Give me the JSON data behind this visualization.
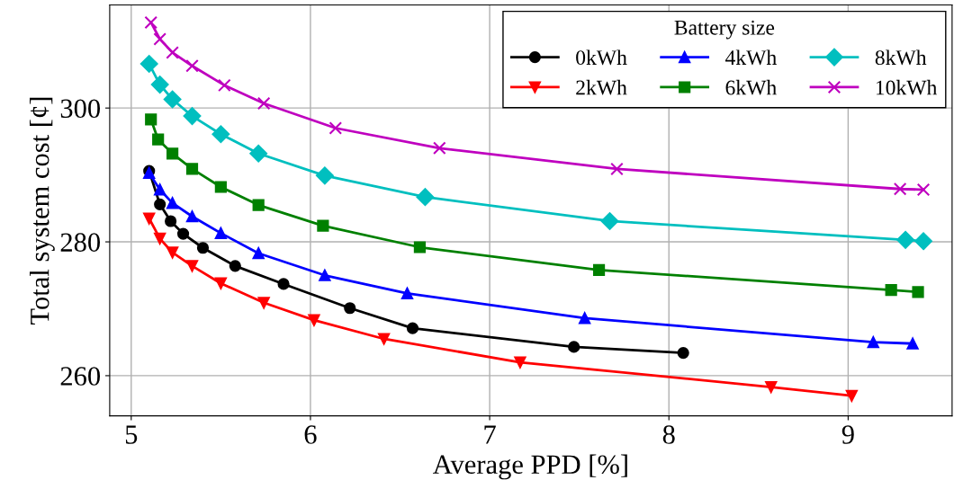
{
  "chart_data": {
    "type": "line",
    "xlabel": "Average PPD [%]",
    "ylabel": "Total system cost [¢]",
    "legend_title": "Battery size",
    "legend": "top right",
    "grid": true,
    "line_style": "solid",
    "xlim": [
      4.88,
      9.58
    ],
    "xticks": [
      5,
      6,
      7,
      8,
      9
    ],
    "ylim": [
      254,
      315.4
    ],
    "yticks": [
      260,
      280,
      300
    ],
    "series": [
      {
        "name": "0kWh",
        "color": "#000000",
        "marker": "circle",
        "x": [
          5.1,
          5.16,
          5.22,
          5.29,
          5.4,
          5.58,
          5.85,
          6.22,
          6.57,
          7.47,
          8.08
        ],
        "values": [
          290.6,
          285.6,
          283.1,
          281.2,
          279.1,
          276.4,
          273.7,
          270.1,
          267.1,
          264.3,
          263.4
        ]
      },
      {
        "name": "2kWh",
        "color": "#ff0000",
        "marker": "triangle_down",
        "x": [
          5.1,
          5.16,
          5.23,
          5.34,
          5.5,
          5.74,
          6.02,
          6.41,
          7.17,
          8.57,
          9.02
        ],
        "values": [
          283.5,
          280.5,
          278.4,
          276.4,
          273.8,
          270.9,
          268.3,
          265.5,
          262.0,
          258.3,
          257.0
        ]
      },
      {
        "name": "4kWh",
        "color": "#0000ff",
        "marker": "triangle",
        "x": [
          5.1,
          5.16,
          5.23,
          5.34,
          5.5,
          5.71,
          6.08,
          6.54,
          7.53,
          9.14,
          9.36
        ],
        "values": [
          290.3,
          287.8,
          285.8,
          283.8,
          281.3,
          278.3,
          275.0,
          272.3,
          268.6,
          265.0,
          264.8
        ]
      },
      {
        "name": "6kWh",
        "color": "#008000",
        "marker": "square",
        "x": [
          5.11,
          5.15,
          5.23,
          5.34,
          5.5,
          5.71,
          6.07,
          6.61,
          7.61,
          9.24,
          9.39
        ],
        "values": [
          298.3,
          295.3,
          293.2,
          290.9,
          288.2,
          285.5,
          282.4,
          279.2,
          275.8,
          272.8,
          272.5
        ]
      },
      {
        "name": "8kWh",
        "color": "#00bfbf",
        "marker": "diamond",
        "x": [
          5.1,
          5.16,
          5.23,
          5.34,
          5.5,
          5.71,
          6.08,
          6.64,
          7.67,
          9.32,
          9.42
        ],
        "values": [
          306.6,
          303.5,
          301.3,
          298.8,
          296.1,
          293.2,
          289.9,
          286.7,
          283.1,
          280.3,
          280.1
        ]
      },
      {
        "name": "10kWh",
        "color": "#bf00bf",
        "marker": "cross",
        "x": [
          5.11,
          5.16,
          5.23,
          5.34,
          5.52,
          5.74,
          6.14,
          6.72,
          7.71,
          9.29,
          9.42
        ],
        "values": [
          312.8,
          310.3,
          308.3,
          306.3,
          303.4,
          300.7,
          297.0,
          294.0,
          290.9,
          287.9,
          287.8
        ]
      }
    ]
  }
}
